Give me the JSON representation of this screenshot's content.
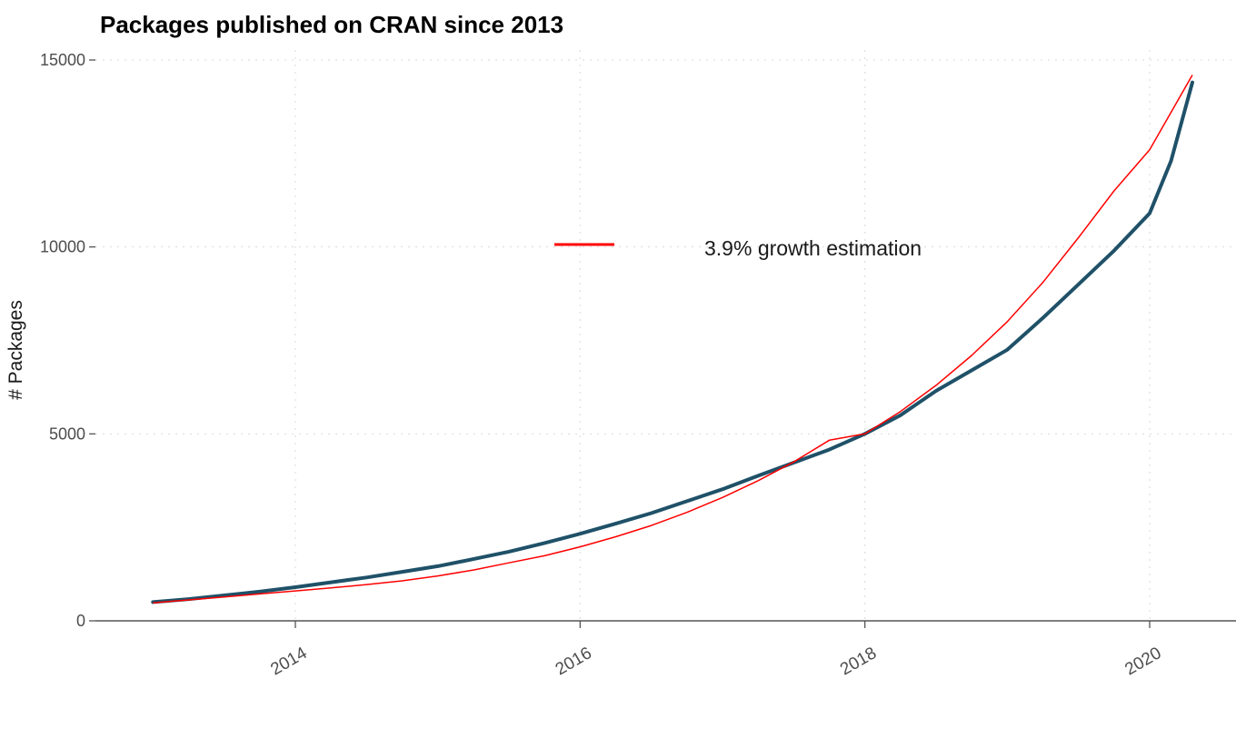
{
  "chart_data": {
    "type": "line",
    "title": "Packages published on CRAN since 2013",
    "xlabel": "",
    "ylabel": "# Packages",
    "xlim": [
      2012.65,
      2020.75
    ],
    "ylim": [
      -200,
      15500
    ],
    "y_ticks": [
      {
        "value": 0,
        "label": "0"
      },
      {
        "value": 5000,
        "label": "5000"
      },
      {
        "value": 10000,
        "label": "10000"
      },
      {
        "value": 15000,
        "label": "15000"
      }
    ],
    "x_ticks": [
      {
        "value": 2014,
        "label": "2014"
      },
      {
        "value": 2016,
        "label": "2016"
      },
      {
        "value": 2018,
        "label": "2018"
      },
      {
        "value": 2020,
        "label": "2020"
      }
    ],
    "grid": true,
    "legend": {
      "position": "top-center",
      "entries": [
        {
          "label": "3.9% growth estimation",
          "color": "#ff0000"
        }
      ]
    },
    "series": [
      {
        "name": "Packages published",
        "color": "#1f5168",
        "x": [
          2013.0,
          2013.25,
          2013.5,
          2013.75,
          2014.0,
          2014.25,
          2014.5,
          2014.75,
          2015.0,
          2015.25,
          2015.5,
          2015.75,
          2016.0,
          2016.25,
          2016.5,
          2016.75,
          2017.0,
          2017.25,
          2017.5,
          2017.75,
          2018.0,
          2018.25,
          2018.5,
          2018.75,
          2019.0,
          2019.25,
          2019.5,
          2019.75,
          2020.0,
          2020.15,
          2020.3
        ],
        "values": [
          500,
          580,
          680,
          780,
          900,
          1030,
          1160,
          1310,
          1460,
          1650,
          1850,
          2080,
          2330,
          2600,
          2880,
          3200,
          3520,
          3880,
          4230,
          4580,
          5000,
          5500,
          6150,
          6700,
          7250,
          8100,
          9000,
          9900,
          10900,
          12300,
          14400
        ]
      },
      {
        "name": "3.9% growth estimation",
        "color": "#ff0000",
        "x": [
          2013.0,
          2013.25,
          2013.5,
          2013.75,
          2014.0,
          2014.25,
          2014.5,
          2014.75,
          2015.0,
          2015.25,
          2015.5,
          2015.75,
          2016.0,
          2016.25,
          2016.5,
          2016.75,
          2017.0,
          2017.25,
          2017.5,
          2017.75,
          2018.0,
          2018.25,
          2018.5,
          2018.75,
          2019.0,
          2019.25,
          2019.5,
          2019.75,
          2020.0,
          2020.15,
          2020.3
        ],
        "values": [
          480,
          560,
          640,
          720,
          800,
          880,
          970,
          1070,
          1200,
          1360,
          1550,
          1740,
          1980,
          2250,
          2550,
          2900,
          3300,
          3750,
          4250,
          4830,
          5000,
          5600,
          6300,
          7100,
          8000,
          9050,
          10250,
          11500,
          12600,
          13600,
          14600
        ]
      }
    ]
  }
}
